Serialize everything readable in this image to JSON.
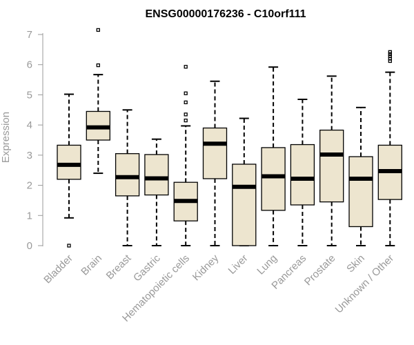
{
  "chart_data": {
    "type": "boxplot",
    "title": "ENSG00000176236 - C10orf111",
    "xlabel": "",
    "ylabel": "Expression",
    "ylim": [
      0,
      7
    ],
    "yticks": [
      0,
      1,
      2,
      3,
      4,
      5,
      6,
      7
    ],
    "box_fill": "#ede5cf",
    "categories": [
      "Bladder",
      "Brain",
      "Breast",
      "Gastric",
      "Hematopoietic cells",
      "Kidney",
      "Liver",
      "Lung",
      "Pancreas",
      "Prostate",
      "Skin",
      "Unknown / Other"
    ],
    "series": [
      {
        "name": "Bladder",
        "whisker_low": 0.92,
        "q1": 2.2,
        "median": 2.68,
        "q3": 3.33,
        "whisker_high": 5.02,
        "outliers": [
          0.0
        ]
      },
      {
        "name": "Brain",
        "whisker_low": 2.4,
        "q1": 3.5,
        "median": 3.92,
        "q3": 4.45,
        "whisker_high": 5.67,
        "outliers": [
          5.98,
          7.15
        ]
      },
      {
        "name": "Breast",
        "whisker_low": 0.0,
        "q1": 1.65,
        "median": 2.27,
        "q3": 3.05,
        "whisker_high": 4.5,
        "outliers": []
      },
      {
        "name": "Gastric",
        "whisker_low": 0.0,
        "q1": 1.68,
        "median": 2.23,
        "q3": 3.02,
        "whisker_high": 3.53,
        "outliers": []
      },
      {
        "name": "Hematopoietic cells",
        "whisker_low": 0.0,
        "q1": 0.82,
        "median": 1.48,
        "q3": 2.1,
        "whisker_high": 3.97,
        "outliers": [
          4.15,
          4.35,
          4.75,
          5.05,
          5.93
        ]
      },
      {
        "name": "Kidney",
        "whisker_low": 0.0,
        "q1": 2.22,
        "median": 3.38,
        "q3": 3.9,
        "whisker_high": 5.45,
        "outliers": []
      },
      {
        "name": "Liver",
        "whisker_low": 0.0,
        "q1": 0.0,
        "median": 1.95,
        "q3": 2.7,
        "whisker_high": 4.22,
        "outliers": []
      },
      {
        "name": "Lung",
        "whisker_low": 0.0,
        "q1": 1.17,
        "median": 2.3,
        "q3": 3.25,
        "whisker_high": 5.92,
        "outliers": []
      },
      {
        "name": "Pancreas",
        "whisker_low": 0.0,
        "q1": 1.35,
        "median": 2.22,
        "q3": 3.35,
        "whisker_high": 4.85,
        "outliers": []
      },
      {
        "name": "Prostate",
        "whisker_low": 0.0,
        "q1": 1.45,
        "median": 3.02,
        "q3": 3.83,
        "whisker_high": 5.62,
        "outliers": []
      },
      {
        "name": "Skin",
        "whisker_low": 0.0,
        "q1": 0.63,
        "median": 2.22,
        "q3": 2.95,
        "whisker_high": 4.58,
        "outliers": []
      },
      {
        "name": "Unknown / Other",
        "whisker_low": 0.0,
        "q1": 1.53,
        "median": 2.47,
        "q3": 3.33,
        "whisker_high": 5.75,
        "outliers": [
          6.12,
          6.2,
          6.28,
          6.35,
          6.42
        ]
      }
    ]
  }
}
